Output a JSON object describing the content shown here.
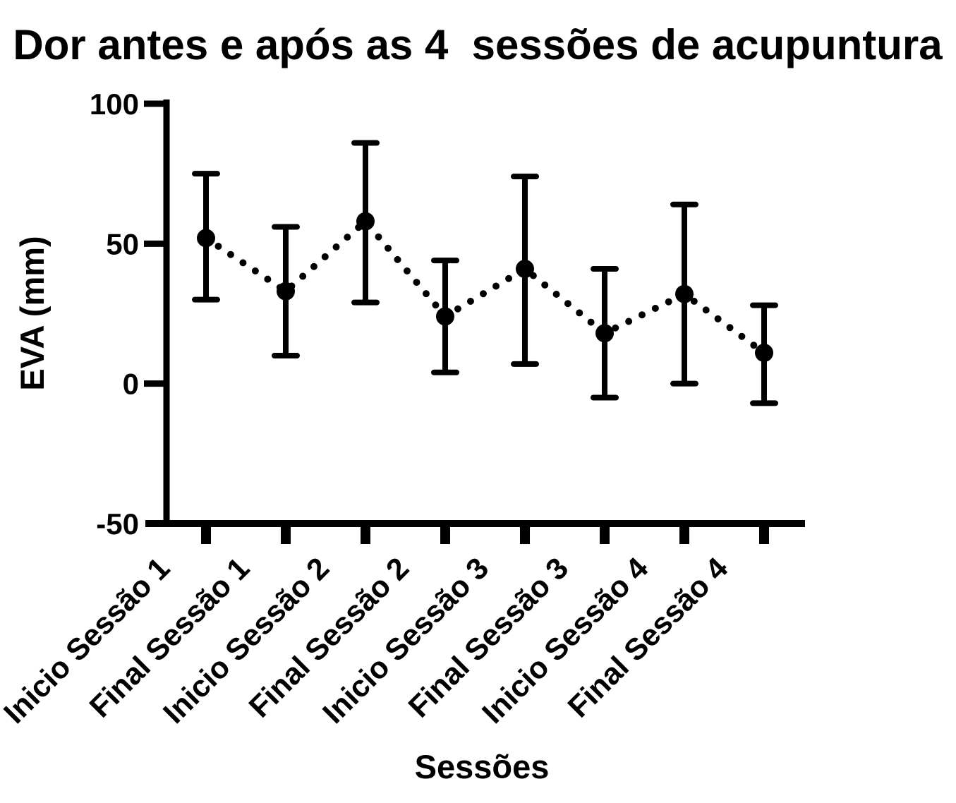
{
  "title": "Dor antes e após as 4  sessões de acupuntura",
  "colors": {
    "foreground": "#000000",
    "background": "#ffffff"
  },
  "chart_data": {
    "type": "scatter",
    "subtype": "mean-with-error-bars-dotted-connector",
    "title": "Dor antes e após as 4  sessões de acupuntura",
    "xlabel": "Sessões",
    "ylabel": "EVA (mm)",
    "ylim": [
      -50,
      100
    ],
    "yticks": [
      100,
      50,
      0,
      -50
    ],
    "grid": false,
    "legend": false,
    "categories": [
      "Inicio Sessão 1",
      "Final Sessão 1",
      "Inicio Sessão 2",
      "Final Sessão 2",
      "Inicio Sessão 3",
      "Final Sessão 3",
      "Inicio Sessão 4",
      "Final Sessão 4"
    ],
    "series": [
      {
        "name": "EVA (mm)",
        "marker": "filled-circle",
        "line_style": "dotted",
        "color": "#000000",
        "means": [
          52,
          33,
          58,
          24,
          41,
          18,
          32,
          11
        ],
        "upper": [
          75,
          56,
          86,
          44,
          74,
          41,
          64,
          28
        ],
        "lower": [
          30,
          10,
          29,
          4,
          7,
          -5,
          0,
          -7
        ]
      }
    ]
  }
}
